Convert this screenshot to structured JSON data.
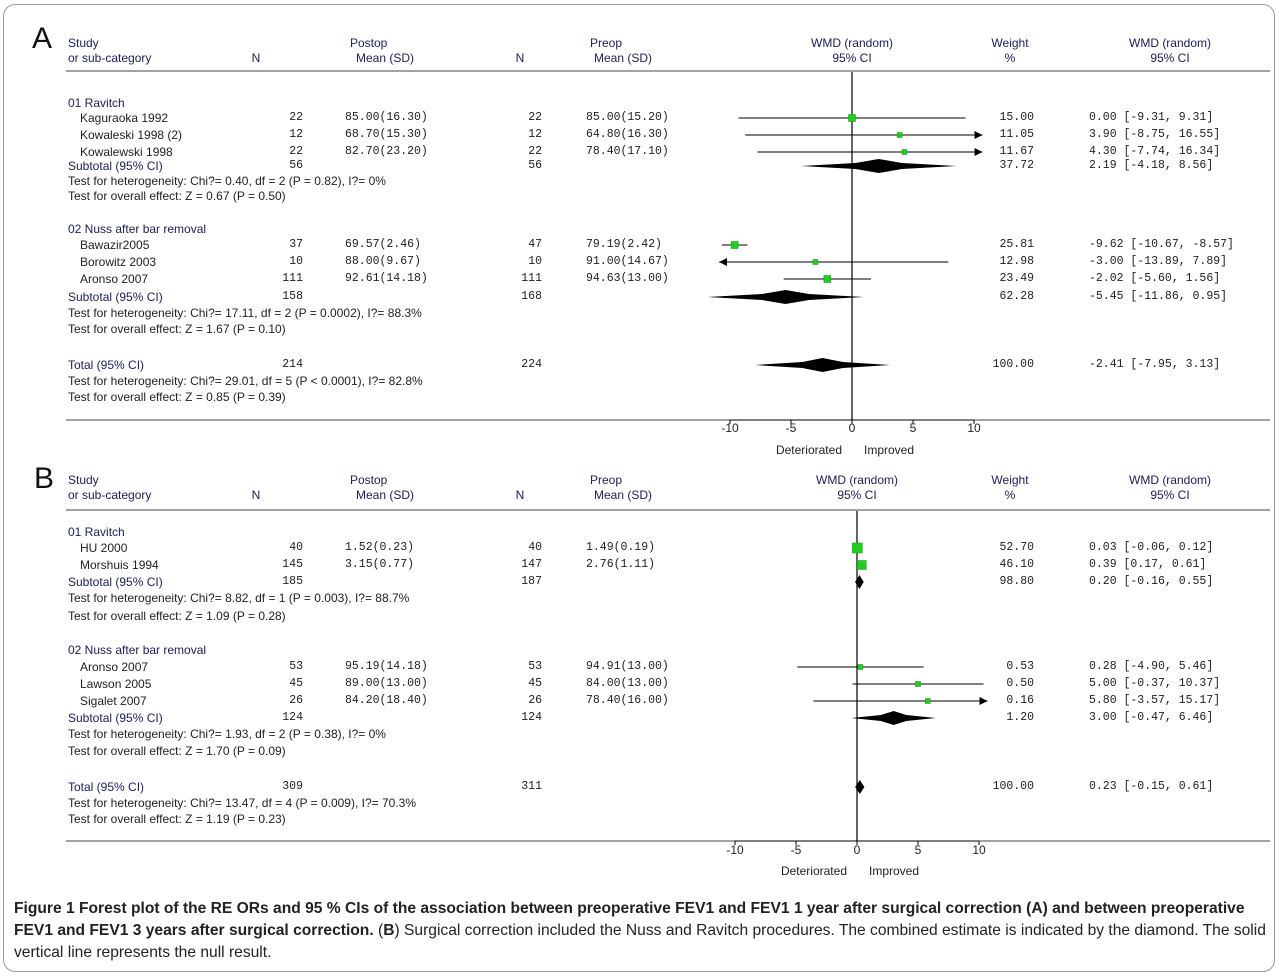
{
  "caption": {
    "label": "Figure 1",
    "bold_text": "Forest plot of the RE ORs and 95 % CIs of the association between preoperative FEV1 and FEV1 1 year after surgical correction (A) and between preoperative FEV1 and FEV1 3 years after surgical correction.",
    "b_open": "(",
    "b_letter": "B",
    "rest": ") Surgical correction included the Nuss and Ravitch procedures. The combined estimate is indicated by the diamond. The solid vertical line represents the null result."
  },
  "headers": {
    "study_1": "Study",
    "study_2": "or sub-category",
    "n": "N",
    "postop_1": "Postop",
    "postop_2": "Mean (SD)",
    "preop_1": "Preop",
    "preop_2": "Mean (SD)",
    "wmd_1": "WMD (random)",
    "wmd_2": "95% CI",
    "weight_1": "Weight",
    "weight_2": "%",
    "wmdr_1": "WMD (random)",
    "wmdr_2": "95% CI"
  },
  "axis": {
    "ticks": [
      "-10",
      "-5",
      "0",
      "5",
      "10"
    ],
    "tick_values": [
      -10,
      -5,
      0,
      5,
      10
    ],
    "left_label": "Deteriorated",
    "right_label": "Improved"
  },
  "chart_data": [
    {
      "type": "forest",
      "panel": "A",
      "xlim": [
        -10,
        10
      ],
      "groups": [
        {
          "name": "01 Ravitch",
          "studies": [
            {
              "name": "Kaguraoka 1992",
              "n_post": "22",
              "post": "85.00(16.30)",
              "n_pre": "22",
              "pre": "85.00(15.20)",
              "weight": "15.00",
              "ci_text": "0.00 [-9.31, 9.31]",
              "est": 0.0,
              "lo": -9.31,
              "hi": 9.31
            },
            {
              "name": "Kowaleski 1998 (2)",
              "n_post": "12",
              "post": "68.70(15.30)",
              "n_pre": "12",
              "pre": "64.80(16.30)",
              "weight": "11.05",
              "ci_text": "3.90 [-8.75, 16.55]",
              "est": 3.9,
              "lo": -8.75,
              "hi": 16.55
            },
            {
              "name": "Kowalewski 1998",
              "n_post": "22",
              "post": "82.70(23.20)",
              "n_pre": "22",
              "pre": "78.40(17.10)",
              "weight": "11.67",
              "ci_text": "4.30 [-7.74, 16.34]",
              "est": 4.3,
              "lo": -7.74,
              "hi": 16.34
            }
          ],
          "subtotal": {
            "label": "Subtotal (95% CI)",
            "n_post": "56",
            "n_pre": "56",
            "weight": "37.72",
            "ci_text": "2.19 [-4.18, 8.56]",
            "est": 2.19,
            "lo": -4.18,
            "hi": 8.56
          },
          "het": "Test for heterogeneity: Chi?= 0.40, df = 2 (P = 0.82), I?= 0%",
          "overall": "Test for overall effect: Z = 0.67 (P = 0.50)"
        },
        {
          "name": "02 Nuss after bar removal",
          "studies": [
            {
              "name": "Bawazir2005",
              "n_post": "37",
              "post": "69.57(2.46)",
              "n_pre": "47",
              "pre": "79.19(2.42)",
              "weight": "25.81",
              "ci_text": "-9.62 [-10.67, -8.57]",
              "est": -9.62,
              "lo": -10.67,
              "hi": -8.57
            },
            {
              "name": "Borowitz 2003",
              "n_post": "10",
              "post": "88.00(9.67)",
              "n_pre": "10",
              "pre": "91.00(14.67)",
              "weight": "12.98",
              "ci_text": "-3.00 [-13.89, 7.89]",
              "est": -3.0,
              "lo": -13.89,
              "hi": 7.89
            },
            {
              "name": "Aronso 2007",
              "n_post": "111",
              "post": "92.61(14.18)",
              "n_pre": "111",
              "pre": "94.63(13.00)",
              "weight": "23.49",
              "ci_text": "-2.02 [-5.60, 1.56]",
              "est": -2.02,
              "lo": -5.6,
              "hi": 1.56
            }
          ],
          "subtotal": {
            "label": "Subtotal (95% CI)",
            "n_post": "158",
            "n_pre": "168",
            "weight": "62.28",
            "ci_text": "-5.45 [-11.86, 0.95]",
            "est": -5.45,
            "lo": -11.86,
            "hi": 0.95
          },
          "het": "Test for heterogeneity: Chi?= 17.11, df = 2 (P = 0.0002), I?= 88.3%",
          "overall": "Test for overall effect: Z = 1.67 (P = 0.10)"
        }
      ],
      "total": {
        "label": "Total (95% CI)",
        "n_post": "214",
        "n_pre": "224",
        "weight": "100.00",
        "ci_text": "-2.41 [-7.95, 3.13]",
        "est": -2.41,
        "lo": -7.95,
        "hi": 3.13,
        "het": "Test for heterogeneity: Chi?= 29.01, df = 5 (P < 0.0001), I?= 82.8%",
        "overall": "Test for overall effect: Z = 0.85 (P = 0.39)"
      }
    },
    {
      "type": "forest",
      "panel": "B",
      "xlim": [
        -10,
        10
      ],
      "groups": [
        {
          "name": "01 Ravitch",
          "studies": [
            {
              "name": "HU 2000",
              "n_post": "40",
              "post": "1.52(0.23)",
              "n_pre": "40",
              "pre": "1.49(0.19)",
              "weight": "52.70",
              "ci_text": "0.03 [-0.06, 0.12]",
              "est": 0.03,
              "lo": -0.06,
              "hi": 0.12
            },
            {
              "name": "Morshuis 1994",
              "n_post": "145",
              "post": "3.15(0.77)",
              "n_pre": "147",
              "pre": "2.76(1.11)",
              "weight": "46.10",
              "ci_text": "0.39 [0.17, 0.61]",
              "est": 0.39,
              "lo": 0.17,
              "hi": 0.61
            }
          ],
          "subtotal": {
            "label": "Subtotal (95% CI)",
            "n_post": "185",
            "n_pre": "187",
            "weight": "98.80",
            "ci_text": "0.20 [-0.16, 0.55]",
            "est": 0.2,
            "lo": -0.16,
            "hi": 0.55
          },
          "het": "Test for heterogeneity: Chi?= 8.82, df = 1 (P = 0.003), I?= 88.7%",
          "overall": "Test for overall effect: Z = 1.09 (P = 0.28)"
        },
        {
          "name": "02 Nuss after bar removal",
          "studies": [
            {
              "name": "Aronso 2007",
              "n_post": "53",
              "post": "95.19(14.18)",
              "n_pre": "53",
              "pre": "94.91(13.00)",
              "weight": "0.53",
              "ci_text": "0.28 [-4.90, 5.46]",
              "est": 0.28,
              "lo": -4.9,
              "hi": 5.46
            },
            {
              "name": "Lawson 2005",
              "n_post": "45",
              "post": "89.00(13.00)",
              "n_pre": "45",
              "pre": "84.00(13.00)",
              "weight": "0.50",
              "ci_text": "5.00 [-0.37, 10.37]",
              "est": 5.0,
              "lo": -0.37,
              "hi": 10.37
            },
            {
              "name": "Sigalet 2007",
              "n_post": "26",
              "post": "84.20(18.40)",
              "n_pre": "26",
              "pre": "78.40(16.00)",
              "weight": "0.16",
              "ci_text": "5.80 [-3.57, 15.17]",
              "est": 5.8,
              "lo": -3.57,
              "hi": 15.17
            }
          ],
          "subtotal": {
            "label": "Subtotal (95% CI)",
            "n_post": "124",
            "n_pre": "124",
            "weight": "1.20",
            "ci_text": "3.00 [-0.47, 6.46]",
            "est": 3.0,
            "lo": -0.47,
            "hi": 6.46
          },
          "het": "Test for heterogeneity: Chi?= 1.93, df = 2 (P = 0.38), I?= 0%",
          "overall": "Test for overall effect: Z = 1.70 (P = 0.09)"
        }
      ],
      "total": {
        "label": "Total (95% CI)",
        "n_post": "309",
        "n_pre": "311",
        "weight": "100.00",
        "ci_text": "0.23 [-0.15, 0.61]",
        "est": 0.23,
        "lo": -0.15,
        "hi": 0.61,
        "het": "Test for heterogeneity: Chi?= 13.47, df = 4 (P = 0.009), I?= 70.3%",
        "overall": "Test for overall effect: Z = 1.19 (P = 0.23)"
      }
    }
  ]
}
